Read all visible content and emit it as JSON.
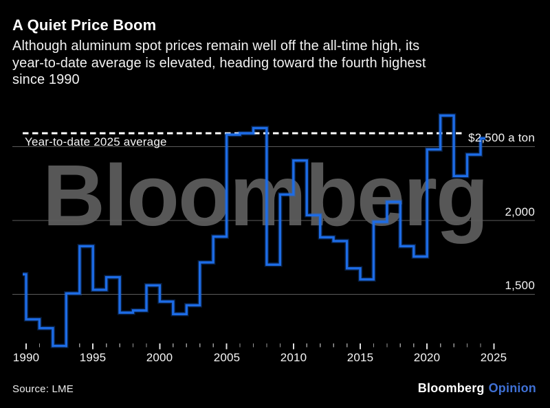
{
  "header": {
    "title": "A Quiet Price Boom",
    "subtitle_lines": [
      "Although aluminum spot prices remain well off the all-time high, its",
      "year-to-date average is elevated, heading toward the fourth highest",
      "since 1990"
    ]
  },
  "watermark": "Bloomberg",
  "chart_data": {
    "type": "line",
    "step_style": "value-of-year-Y-spans-interval-ending-at-tick-Y",
    "title": "A Quiet Price Boom",
    "xlabel": "",
    "ylabel": "",
    "unit_label": "$2,500 a ton",
    "x": [
      1990,
      1991,
      1992,
      1993,
      1994,
      1995,
      1996,
      1997,
      1998,
      1999,
      2000,
      2001,
      2002,
      2003,
      2004,
      2005,
      2006,
      2007,
      2008,
      2009,
      2010,
      2011,
      2012,
      2013,
      2014,
      2015,
      2016,
      2017,
      2018,
      2019,
      2020,
      2021,
      2022,
      2023,
      2024,
      2025
    ],
    "values": [
      1635,
      1330,
      1270,
      1150,
      1505,
      1825,
      1530,
      1615,
      1375,
      1390,
      1560,
      1450,
      1365,
      1425,
      1715,
      1890,
      2580,
      2590,
      2625,
      1700,
      2175,
      2405,
      2035,
      1885,
      1860,
      1675,
      1600,
      1990,
      2125,
      1825,
      1755,
      2480,
      2710,
      2300,
      2445,
      2555
    ],
    "final_year_partial": true,
    "avg_line": {
      "label": "Year-to-date 2025 average",
      "value": 2590,
      "style": "dashed-white"
    },
    "y_ticks": [
      {
        "value": 2500,
        "label": "$2,500 a ton"
      },
      {
        "value": 2000,
        "label": "2,000"
      },
      {
        "value": 1500,
        "label": "1,500"
      }
    ],
    "x_tick_labels": [
      1990,
      1995,
      2000,
      2005,
      2010,
      2015,
      2020,
      2025
    ],
    "ylim": [
      1100,
      2800
    ],
    "xlim": [
      1989.75,
      2025.8
    ],
    "grid": "horizontal-only",
    "legend_position": "none"
  },
  "footer": {
    "source": "Source: LME",
    "brand": "Bloomberg",
    "brand_suffix": "Opinion"
  },
  "colors": {
    "background": "#000000",
    "line_blue": "#1d6ce6",
    "line_glow": "#1d6ce6",
    "dashed_line": "#ffffff",
    "gridline": "#5c5c5c",
    "watermark_gray": "#575757",
    "tick_major": "#e0e0e0",
    "tick_minor": "#999999",
    "text": "#ffffff",
    "opinion_blue": "#3f70d4"
  }
}
